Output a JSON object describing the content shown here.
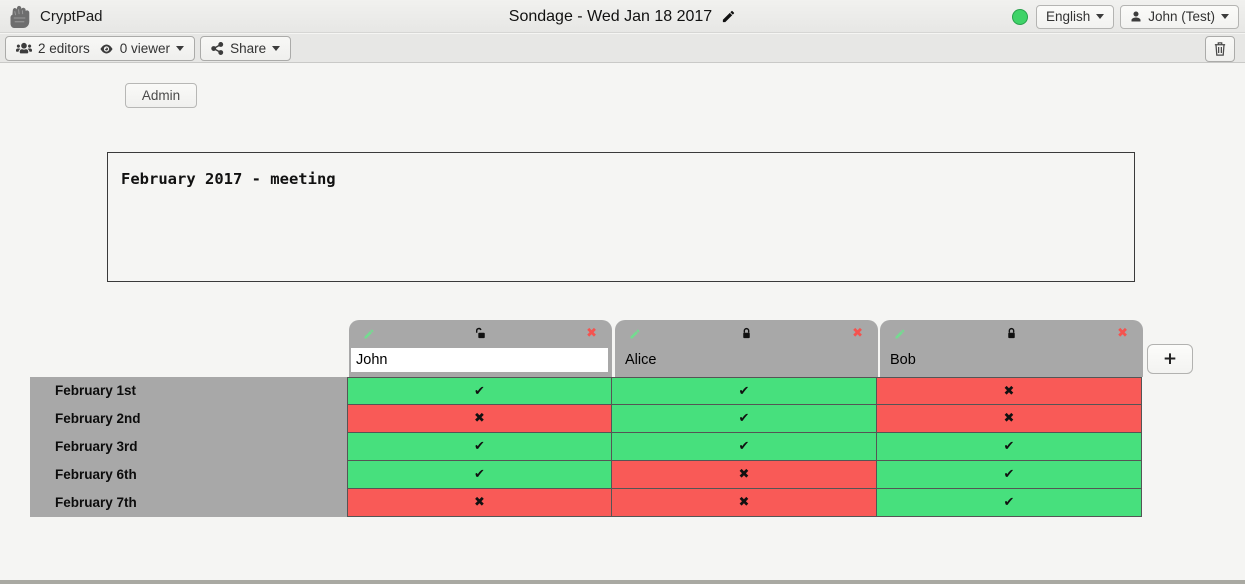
{
  "topbar": {
    "app_name": "CryptPad",
    "document_title": "Sondage - Wed Jan 18 2017",
    "language_label": "English",
    "user_label": "John (Test)",
    "status_color": "#3fd368"
  },
  "toolbar": {
    "editors_label": "2 editors",
    "viewers_label": "0 viewer",
    "share_label": "Share"
  },
  "content": {
    "admin_button_label": "Admin",
    "description_text": "February 2017 - meeting"
  },
  "poll": {
    "add_column_label": "+",
    "columns": [
      {
        "name": "John",
        "editable": true,
        "locked": false
      },
      {
        "name": "Alice",
        "editable": false,
        "locked": true
      },
      {
        "name": "Bob",
        "editable": false,
        "locked": true
      }
    ],
    "rows": [
      {
        "label": "February 1st",
        "cells": [
          "yes",
          "yes",
          "no"
        ]
      },
      {
        "label": "February 2nd",
        "cells": [
          "no",
          "yes",
          "no"
        ]
      },
      {
        "label": "February 3rd",
        "cells": [
          "yes",
          "yes",
          "yes"
        ]
      },
      {
        "label": "February 6th",
        "cells": [
          "yes",
          "no",
          "yes"
        ]
      },
      {
        "label": "February 7th",
        "cells": [
          "no",
          "no",
          "yes"
        ]
      }
    ],
    "marks": {
      "yes": "✔",
      "no": "✖"
    },
    "colors": {
      "yes": "#47e07d",
      "no": "#f95a57"
    }
  }
}
